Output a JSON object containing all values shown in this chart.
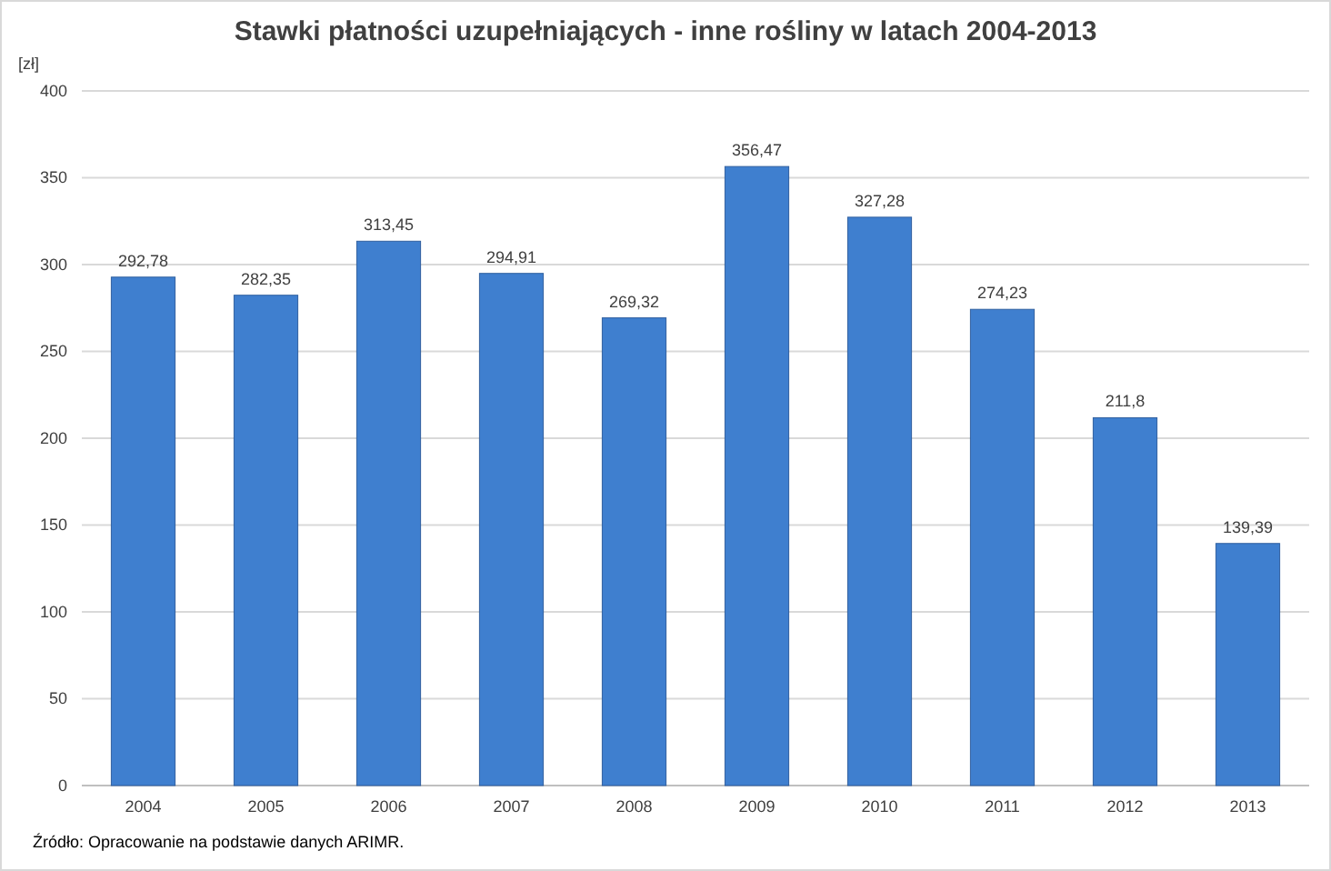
{
  "chart_data": {
    "type": "bar",
    "title": "Stawki płatności uzupełniających  - inne rośliny w latach 2004-2013",
    "ylabel": "[zł]",
    "categories": [
      "2004",
      "2005",
      "2006",
      "2007",
      "2008",
      "2009",
      "2010",
      "2011",
      "2012",
      "2013"
    ],
    "values": [
      292.78,
      282.35,
      313.45,
      294.91,
      269.32,
      356.47,
      327.28,
      274.23,
      211.8,
      139.39
    ],
    "value_labels": [
      "292,78",
      "282,35",
      "313,45",
      "294,91",
      "269,32",
      "356,47",
      "327,28",
      "274,23",
      "211,8",
      "139,39"
    ],
    "color": "#3f7fcf",
    "ylim": [
      0,
      400
    ],
    "yticks": [
      0,
      50,
      100,
      150,
      200,
      250,
      300,
      350,
      400
    ],
    "grid": "y",
    "annotations": [
      "Źródło: Opracowanie na podstawie danych ARIMR."
    ]
  }
}
